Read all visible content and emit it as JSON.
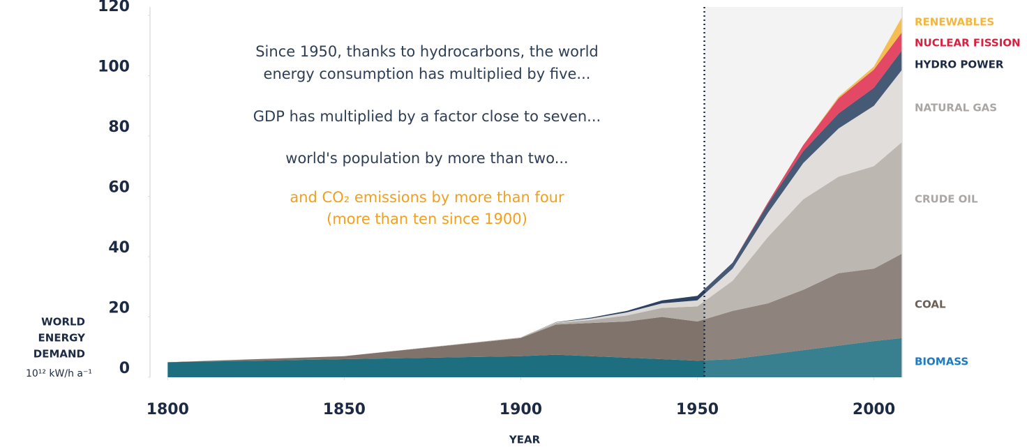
{
  "chart_data": {
    "type": "stacked_area",
    "y_label": [
      "WORLD",
      "ENERGY",
      "DEMAND"
    ],
    "y_unit": "10¹² kW/h a⁻¹",
    "x_label": "YEAR",
    "x": [
      1800,
      1850,
      1900,
      1910,
      1920,
      1930,
      1940,
      1950,
      1960,
      1970,
      1980,
      1990,
      2000,
      2008
    ],
    "series": [
      {
        "name": "BIOMASS",
        "color": "#1d6f80",
        "label_color": "#1f7bbf",
        "values": [
          5,
          6,
          7,
          7.5,
          7,
          6.5,
          6,
          5.5,
          6,
          7.5,
          9,
          10.5,
          12,
          13
        ]
      },
      {
        "name": "COAL",
        "color": "#7f736c",
        "label_color": "#6e5f55",
        "values": [
          0,
          1,
          6,
          10,
          11,
          12,
          14,
          13,
          16,
          17,
          20,
          24,
          24,
          28
        ]
      },
      {
        "name": "CRUDE OIL",
        "color": "#b4aea8",
        "label_color": "#a9a6a3",
        "values": [
          0,
          0,
          0.2,
          0.5,
          1,
          2,
          3,
          5,
          10,
          22,
          30,
          32,
          34,
          37
        ]
      },
      {
        "name": "NATURAL GAS",
        "color": "#dcd9d5",
        "label_color": "#a9a6a3",
        "values": [
          0,
          0,
          0,
          0.2,
          0.5,
          1,
          1.5,
          2,
          4,
          8,
          12,
          16,
          20,
          24
        ]
      },
      {
        "name": "HYDRO POWER",
        "color": "#2d4262",
        "label_color": "#1d2a44",
        "values": [
          0,
          0,
          0,
          0.1,
          0.3,
          0.5,
          1,
          1.5,
          2,
          3,
          4,
          5,
          6,
          6.5
        ]
      },
      {
        "name": "NUCLEAR FISSION",
        "color": "#e03050",
        "label_color": "#d8203f",
        "values": [
          0,
          0,
          0,
          0,
          0,
          0,
          0,
          0,
          0,
          0.5,
          2,
          5,
          6,
          6
        ]
      },
      {
        "name": "RENEWABLES",
        "color": "#f3b63c",
        "label_color": "#f3b63c",
        "values": [
          0,
          0,
          0,
          0,
          0,
          0,
          0,
          0,
          0,
          0,
          0,
          0.5,
          1,
          5
        ]
      }
    ],
    "xlim": [
      1795,
      2008
    ],
    "xticks": [
      1800,
      1850,
      1900,
      1950,
      2000
    ],
    "ylim": [
      0,
      120
    ],
    "yticks": [
      0,
      20,
      40,
      60,
      80,
      100,
      120
    ],
    "highlight_from": 1952,
    "annotations": [
      {
        "text": "Since 1950, thanks to hydrocarbons, the world",
        "color": "#2d3e55"
      },
      {
        "text": "energy consumption has multiplied by five...",
        "color": "#2d3e55"
      },
      {
        "text": "GDP has multiplied by a factor close to seven...",
        "color": "#2d3e55"
      },
      {
        "text": "world's population by more than two...",
        "color": "#2d3e55"
      },
      {
        "text": "and CO₂ emissions by more than four",
        "color": "#f29f1c"
      },
      {
        "text": "(more than ten since 1900)",
        "color": "#f29f1c"
      }
    ]
  }
}
